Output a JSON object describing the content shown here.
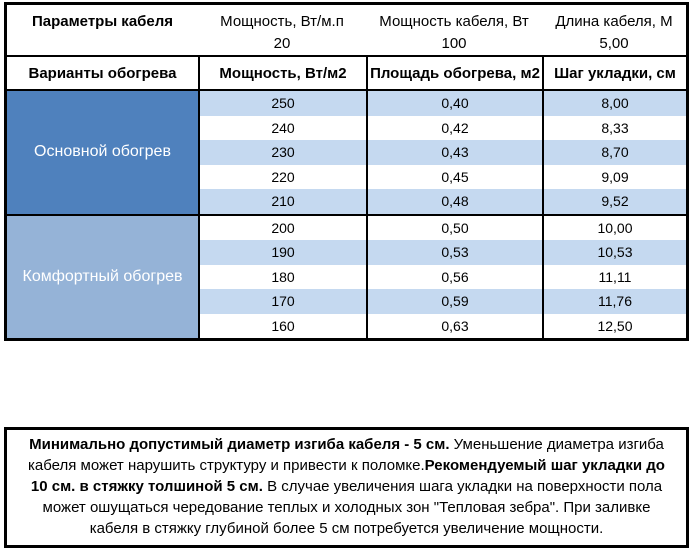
{
  "colors": {
    "group_primary_bg": "#4f81bd",
    "group_comfort_bg": "#95b3d7",
    "row_stripe_bg": "#c5d9f0",
    "border": "#000000",
    "group_label_text": "#ffffff"
  },
  "cable_params": {
    "title": "Параметры кабеля",
    "columns": [
      {
        "label": "Мощность, Вт/м.п",
        "value": "20"
      },
      {
        "label": "Мощность кабеля, Вт",
        "value": "100"
      },
      {
        "label": "Длина кабеля, М",
        "value": "5,00"
      }
    ]
  },
  "heating_table": {
    "header": {
      "variants": "Варианты обогрева",
      "power": "Мощность, Вт/м2",
      "area": "Площадь обогрева, м2",
      "step": "Шаг укладки, см"
    },
    "groups": [
      {
        "label": "Основной обогрев",
        "rows": [
          [
            "250",
            "0,40",
            "8,00"
          ],
          [
            "240",
            "0,42",
            "8,33"
          ],
          [
            "230",
            "0,43",
            "8,70"
          ],
          [
            "220",
            "0,45",
            "9,09"
          ],
          [
            "210",
            "0,48",
            "9,52"
          ]
        ]
      },
      {
        "label": "Комфортный обогрев",
        "rows": [
          [
            "200",
            "0,50",
            "10,00"
          ],
          [
            "190",
            "0,53",
            "10,53"
          ],
          [
            "180",
            "0,56",
            "11,11"
          ],
          [
            "170",
            "0,59",
            "11,76"
          ],
          [
            "160",
            "0,63",
            "12,50"
          ]
        ]
      }
    ]
  },
  "note": {
    "parts": [
      "Минимально допустимый диаметр изгиба кабеля - 5 см.",
      " Уменьшение диаметра изгиба кабеля может нарушить структуру и привести к поломке.",
      "Рекомендуемый шаг укладки до 10 см. в стяжку толшиной 5 см.",
      " В  случае увеличения шага укладки на поверхности пола может ошущаться чередование теплых и холодных зон \"Тепловая зебра\". При заливке кабеля в стяжку глубиной более 5 см потребуется увеличение мощности."
    ]
  }
}
